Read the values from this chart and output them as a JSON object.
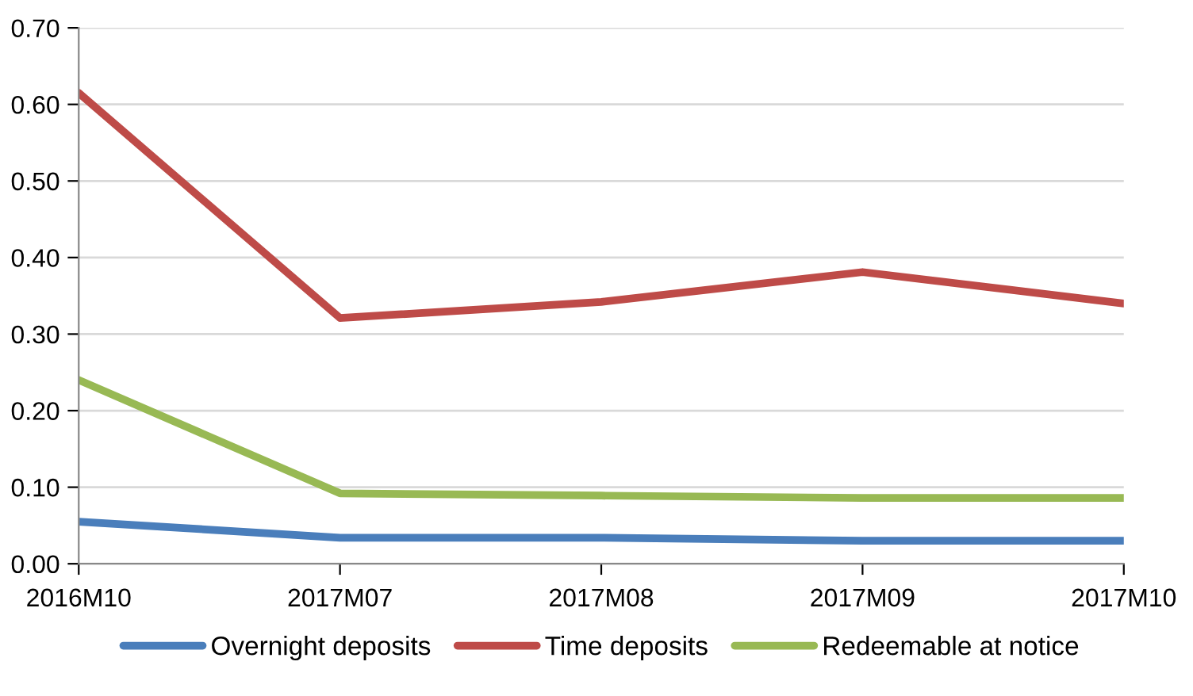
{
  "chart_data": {
    "type": "line",
    "categories": [
      "2016M10",
      "2017M07",
      "2017M08",
      "2017M09",
      "2017M10"
    ],
    "series": [
      {
        "name": "Overnight deposits",
        "color": "#4a7ebb",
        "values": [
          0.055,
          0.034,
          0.034,
          0.03,
          0.03
        ]
      },
      {
        "name": "Time deposits",
        "color": "#be4b48",
        "values": [
          0.615,
          0.321,
          0.342,
          0.381,
          0.34
        ]
      },
      {
        "name": "Redeemable at notice",
        "color": "#98b954",
        "values": [
          0.24,
          0.092,
          0.089,
          0.086,
          0.086
        ]
      }
    ],
    "ylim": [
      0,
      0.7
    ],
    "yticks": [
      {
        "value": 0,
        "label": "0.00"
      },
      {
        "value": 0.1,
        "label": "0.10"
      },
      {
        "value": 0.2,
        "label": "0.20"
      },
      {
        "value": 0.3,
        "label": "0.30"
      },
      {
        "value": 0.4,
        "label": "0.40"
      },
      {
        "value": 0.5,
        "label": "0.50"
      },
      {
        "value": 0.6,
        "label": "0.60"
      },
      {
        "value": 0.7,
        "label": "0.70"
      }
    ],
    "grid": "y",
    "legend": "bottom",
    "marker": "none",
    "line_style": "solid"
  }
}
